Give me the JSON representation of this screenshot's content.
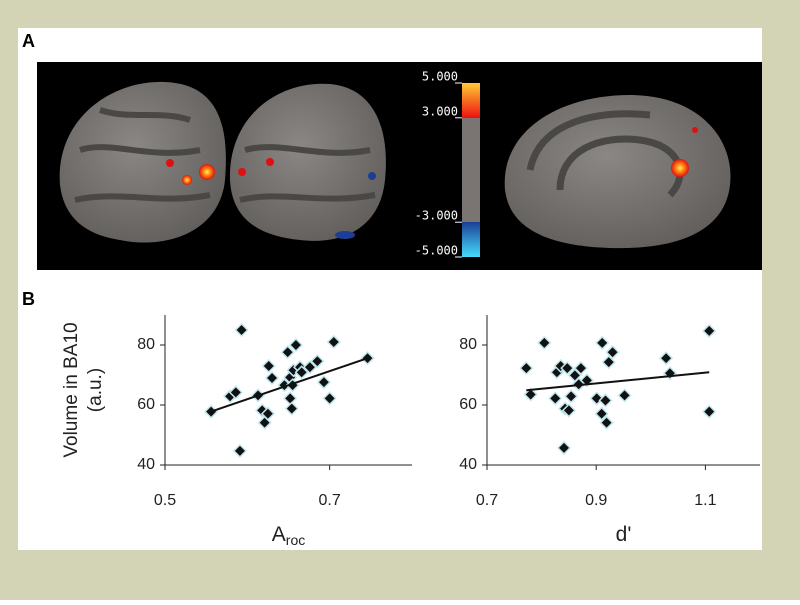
{
  "panel_labels": [
    "A",
    "B"
  ],
  "colorbar": {
    "lim": [
      -5,
      5
    ],
    "ticks": [
      {
        "value": 5,
        "label": "5.000"
      },
      {
        "value": 3,
        "label": "3.000"
      },
      {
        "value": -3,
        "label": "-3.000"
      },
      {
        "value": -5,
        "label": "-5.000"
      }
    ]
  },
  "chart_data": [
    {
      "type": "scatter",
      "xlabel": {
        "base": "A",
        "sub": "roc"
      },
      "ylabel": [
        "Volume in BA10",
        "(a.u.)"
      ],
      "xlim": [
        0.5,
        0.8
      ],
      "ylim": [
        40,
        90
      ],
      "xticks": [
        0.5,
        0.7
      ],
      "yticks": [
        40,
        60,
        80
      ],
      "marker_color": "#111111",
      "marker_edge": "#bfe6ee",
      "line_color": "#111111",
      "x": [
        0.556,
        0.593,
        0.591,
        0.579,
        0.586,
        0.613,
        0.618,
        0.621,
        0.625,
        0.626,
        0.63,
        0.645,
        0.649,
        0.652,
        0.654,
        0.652,
        0.656,
        0.659,
        0.664,
        0.666,
        0.676,
        0.685,
        0.693,
        0.7,
        0.705,
        0.746,
        0.655
      ],
      "y": [
        57.8,
        85,
        44.7,
        62.9,
        64.2,
        63.2,
        58.2,
        54.1,
        57.1,
        73,
        69,
        66.6,
        77.6,
        62.2,
        58.8,
        69.2,
        71.6,
        80,
        72.6,
        70.9,
        72.6,
        74.6,
        67.6,
        62.2,
        81,
        75.6,
        66.6
      ],
      "trendline": {
        "x": [
          0.556,
          0.746
        ],
        "y": [
          57.8,
          75.6
        ]
      }
    },
    {
      "type": "scatter",
      "xlabel": {
        "base": "d'"
      },
      "xlim": [
        0.7,
        1.2
      ],
      "ylim": [
        40,
        90
      ],
      "xticks": [
        0.7,
        0.9,
        1.1
      ],
      "yticks": [
        40,
        60,
        80
      ],
      "marker_color": "#111111",
      "marker_edge": "#bfe6ee",
      "line_color": "#111111",
      "x": [
        0.772,
        0.78,
        0.805,
        0.825,
        0.828,
        0.835,
        0.841,
        0.843,
        0.847,
        0.85,
        0.854,
        0.861,
        0.868,
        0.872,
        0.883,
        0.901,
        0.91,
        0.911,
        0.917,
        0.919,
        0.923,
        0.93,
        0.952,
        1.028,
        1.035,
        1.107,
        1.107
      ],
      "y": [
        72.3,
        63.5,
        80.7,
        62.2,
        70.9,
        73,
        45.7,
        58.8,
        72.3,
        58.2,
        62.9,
        69.9,
        66.9,
        72.3,
        68.2,
        62.2,
        57.1,
        80.7,
        61.5,
        54.1,
        74.3,
        77.6,
        63.2,
        75.6,
        70.6,
        84.7,
        57.8
      ],
      "trendline": {
        "x": [
          0.772,
          1.107
        ],
        "y": [
          64.9,
          70.9
        ]
      }
    }
  ]
}
